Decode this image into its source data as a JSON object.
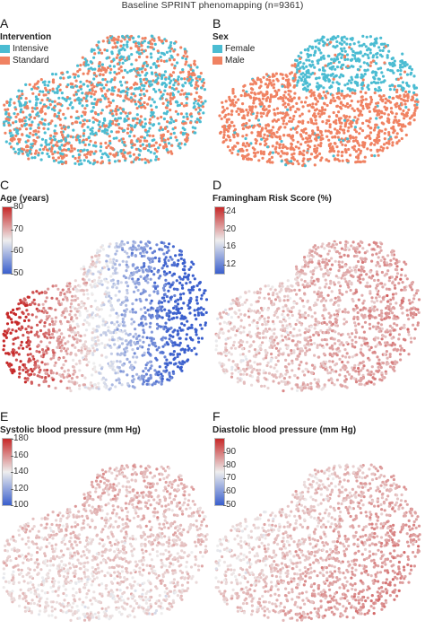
{
  "page_title": "Baseline SPRINT phenomapping (n=9361)",
  "panels": [
    {
      "letter": "A",
      "title": "Intervention",
      "legend": [
        {
          "label": "Intensive",
          "color": "#4bbcd2"
        },
        {
          "label": "Standard",
          "color": "#f08262"
        }
      ]
    },
    {
      "letter": "B",
      "title": "Sex",
      "legend": [
        {
          "label": "Female",
          "color": "#4bbcd2"
        },
        {
          "label": "Male",
          "color": "#f08262"
        }
      ]
    },
    {
      "letter": "C",
      "title": "Age (years)",
      "colorbar": {
        "min": 50,
        "max": 80,
        "ticks": [
          "80",
          "70",
          "60",
          "50"
        ]
      }
    },
    {
      "letter": "D",
      "title": "Framingham Risk Score  (%)",
      "colorbar": {
        "min": 10,
        "max": 25,
        "ticks": [
          "24",
          "20",
          "16",
          "12"
        ]
      }
    },
    {
      "letter": "E",
      "title": "Systolic blood pressure  (mm Hg)",
      "colorbar": {
        "min": 100,
        "max": 180,
        "ticks": [
          "180",
          "160",
          "140",
          "120",
          "100"
        ]
      }
    },
    {
      "letter": "F",
      "title": "Diastolic blood pressure  (mm Hg)",
      "colorbar": {
        "min": 50,
        "max": 100,
        "ticks": [
          "90",
          "80",
          "70",
          "60",
          "50"
        ]
      }
    }
  ],
  "chart_data": [
    {
      "type": "scatter",
      "title": "Intervention",
      "series": [
        {
          "name": "Intensive"
        },
        {
          "name": "Standard"
        }
      ],
      "n": 9361
    },
    {
      "type": "scatter",
      "title": "Sex",
      "series": [
        {
          "name": "Female"
        },
        {
          "name": "Male"
        }
      ],
      "n": 9361
    },
    {
      "type": "scatter",
      "title": "Age (years)",
      "colorscale": {
        "range": [
          50,
          80
        ],
        "ticks": [
          50,
          60,
          70,
          80
        ],
        "colors": [
          "#3a5fcd",
          "#eeeeee",
          "#c62828"
        ]
      }
    },
    {
      "type": "scatter",
      "title": "Framingham Risk Score  (%)",
      "colorscale": {
        "range": [
          10,
          25
        ],
        "ticks": [
          12,
          16,
          20,
          24
        ],
        "colors": [
          "#3a5fcd",
          "#eeeeee",
          "#c62828"
        ]
      }
    },
    {
      "type": "scatter",
      "title": "Systolic blood pressure  (mm Hg)",
      "colorscale": {
        "range": [
          100,
          180
        ],
        "ticks": [
          100,
          120,
          140,
          160,
          180
        ],
        "colors": [
          "#3a5fcd",
          "#eeeeee",
          "#c62828"
        ]
      }
    },
    {
      "type": "scatter",
      "title": "Diastolic blood pressure  (mm Hg)",
      "colorscale": {
        "range": [
          50,
          100
        ],
        "ticks": [
          50,
          60,
          70,
          80,
          90
        ],
        "colors": [
          "#3a5fcd",
          "#eeeeee",
          "#c62828"
        ]
      }
    }
  ]
}
